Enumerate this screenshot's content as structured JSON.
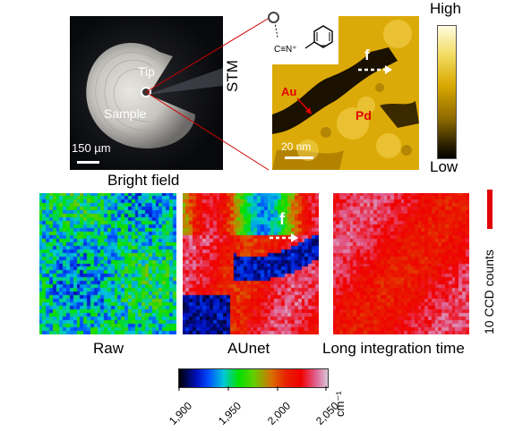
{
  "top": {
    "bright_field": {
      "tip_label": "Tip",
      "sample_label": "Sample",
      "scale_label": "150 µm",
      "caption": "Bright field"
    },
    "stm": {
      "side_label": "STM",
      "au_label": "Au",
      "pd_label": "Pd",
      "f_label": "f",
      "scale_label": "20 nm",
      "molecule_label": "C≡N⁺"
    },
    "height_bar": {
      "high_label": "High",
      "low_label": "Low"
    }
  },
  "maps": {
    "raw_caption": "Raw",
    "aunet_caption": "AUnet",
    "long_caption": "Long integration time",
    "f_label": "f",
    "counts_label": "10 CCD counts"
  },
  "colorbar": {
    "ticks": [
      "1,900",
      "1,950",
      "2,000",
      "2,050"
    ],
    "unit": "cm⁻¹"
  },
  "colors": {
    "scale_red": "#e30000",
    "link_red": "#d40000",
    "stm_gold": "#e8b400"
  }
}
